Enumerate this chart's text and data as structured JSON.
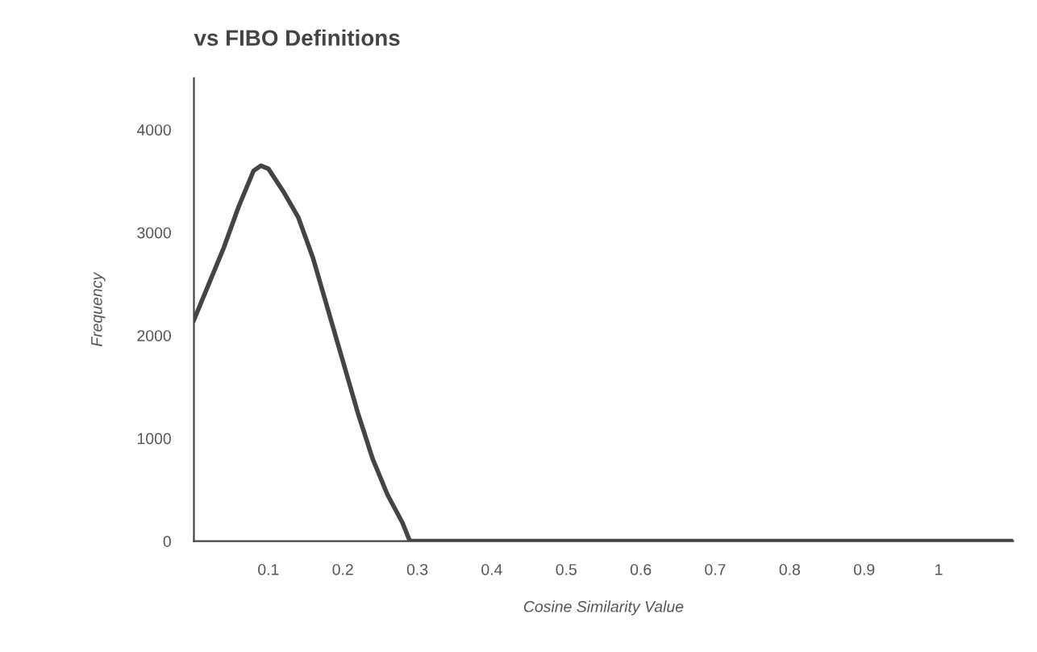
{
  "chart_data": {
    "type": "line",
    "title": "vs FIBO Definitions",
    "xlabel": "Cosine Similarity Value",
    "ylabel": "Frequency",
    "series": [
      {
        "color": "#444444",
        "x": [
          0,
          0.02,
          0.04,
          0.06,
          0.08,
          0.09,
          0.1,
          0.12,
          0.14,
          0.16,
          0.18,
          0.2,
          0.22,
          0.24,
          0.26,
          0.28,
          0.29,
          1.1
        ],
        "values": [
          2150,
          2500,
          2850,
          3250,
          3600,
          3650,
          3620,
          3400,
          3150,
          2750,
          2250,
          1750,
          1250,
          800,
          450,
          180,
          0,
          0
        ]
      }
    ],
    "xlim": [
      0,
      1.1
    ],
    "ylim": [
      0,
      4500
    ],
    "xticks": [
      0.1,
      0.2,
      0.3,
      0.4,
      0.5,
      0.6,
      0.7,
      0.8,
      0.9,
      1
    ],
    "yticks": [
      0,
      1000,
      2000,
      3000,
      4000
    ],
    "grid": false,
    "legend": false
  }
}
